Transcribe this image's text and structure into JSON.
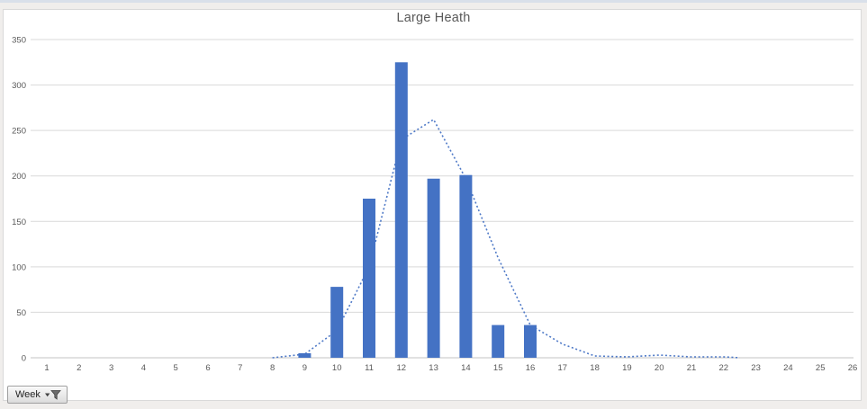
{
  "chart_data": {
    "type": "combo_bar_line",
    "title": "Large Heath",
    "xlabel": "",
    "ylabel": "",
    "x_categories": [
      "1",
      "2",
      "3",
      "4",
      "5",
      "6",
      "7",
      "8",
      "9",
      "10",
      "11",
      "12",
      "13",
      "14",
      "15",
      "16",
      "17",
      "18",
      "19",
      "20",
      "21",
      "22",
      "23",
      "24",
      "25",
      "26"
    ],
    "y_ticks": [
      "0",
      "50",
      "100",
      "150",
      "200",
      "250",
      "300",
      "350"
    ],
    "ylim": [
      0,
      350
    ],
    "grid": "horizontal",
    "legend": "none",
    "bar_series": {
      "values": [
        0,
        0,
        0,
        0,
        0,
        0,
        0,
        0,
        5,
        78,
        175,
        325,
        197,
        201,
        36,
        36,
        0,
        0,
        0,
        0,
        0,
        0,
        0,
        0,
        0,
        0
      ]
    },
    "line_series": {
      "style": "dotted",
      "points": [
        {
          "x": 8,
          "y": 0
        },
        {
          "x": 9,
          "y": 4
        },
        {
          "x": 10,
          "y": 30
        },
        {
          "x": 11,
          "y": 100
        },
        {
          "x": 12,
          "y": 240
        },
        {
          "x": 13,
          "y": 262
        },
        {
          "x": 14,
          "y": 197
        },
        {
          "x": 15,
          "y": 110
        },
        {
          "x": 16,
          "y": 36
        },
        {
          "x": 17,
          "y": 15
        },
        {
          "x": 18,
          "y": 2
        },
        {
          "x": 19,
          "y": 1
        },
        {
          "x": 20,
          "y": 3
        },
        {
          "x": 21,
          "y": 1
        },
        {
          "x": 22,
          "y": 1
        },
        {
          "x": 22.5,
          "y": 0
        }
      ]
    }
  },
  "field_button": {
    "label": "Week",
    "icons": [
      "dropdown-arrow",
      "filter-funnel"
    ]
  },
  "colors": {
    "bar": "#4472C4",
    "line": "#4472C4",
    "gridline": "#D9D9D9",
    "axis_line": "#C3C3C3",
    "label_text": "#595959",
    "title_text": "#595959",
    "chart_border": "#D9D9D9"
  }
}
